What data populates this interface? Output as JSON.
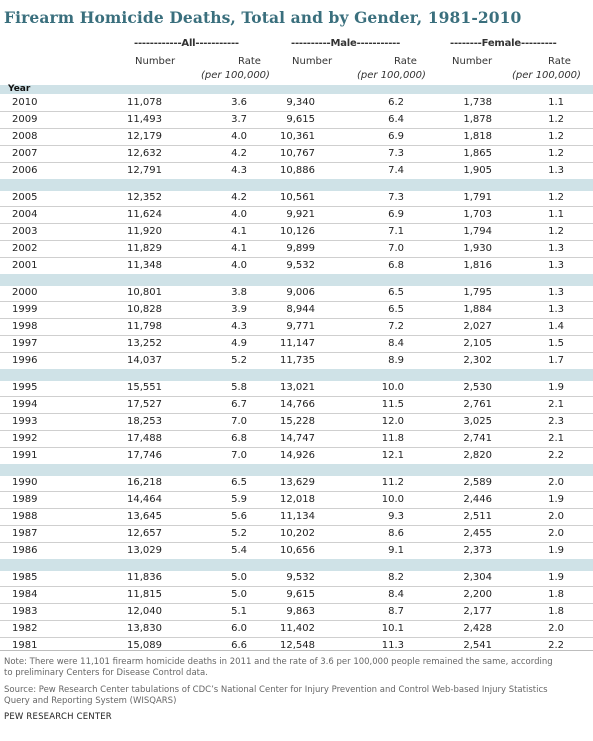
{
  "title": "Firearm Homicide Deaths, Total and by Gender, 1981-2010",
  "groups": {
    "all": "------------All-----------",
    "male": "----------Male-----------",
    "female": "--------Female---------"
  },
  "col_number": "Number",
  "col_rate_1": "Rate",
  "col_rate_2": "(per 100,000)",
  "year_label": "Year",
  "rows": [
    [
      "2010",
      "11,078",
      "3.6",
      "9,340",
      "6.2",
      "1,738",
      "1.1"
    ],
    [
      "2009",
      "11,493",
      "3.7",
      "9,615",
      "6.4",
      "1,878",
      "1.2"
    ],
    [
      "2008",
      "12,179",
      "4.0",
      "10,361",
      "6.9",
      "1,818",
      "1.2"
    ],
    [
      "2007",
      "12,632",
      "4.2",
      "10,767",
      "7.3",
      "1,865",
      "1.2"
    ],
    [
      "2006",
      "12,791",
      "4.3",
      "10,886",
      "7.4",
      "1,905",
      "1.3"
    ],
    [
      "2005",
      "12,352",
      "4.2",
      "10,561",
      "7.3",
      "1,791",
      "1.2"
    ],
    [
      "2004",
      "11,624",
      "4.0",
      "9,921",
      "6.9",
      "1,703",
      "1.1"
    ],
    [
      "2003",
      "11,920",
      "4.1",
      "10,126",
      "7.1",
      "1,794",
      "1.2"
    ],
    [
      "2002",
      "11,829",
      "4.1",
      "9,899",
      "7.0",
      "1,930",
      "1.3"
    ],
    [
      "2001",
      "11,348",
      "4.0",
      "9,532",
      "6.8",
      "1,816",
      "1.3"
    ],
    [
      "2000",
      "10,801",
      "3.8",
      "9,006",
      "6.5",
      "1,795",
      "1.3"
    ],
    [
      "1999",
      "10,828",
      "3.9",
      "8,944",
      "6.5",
      "1,884",
      "1.3"
    ],
    [
      "1998",
      "11,798",
      "4.3",
      "9,771",
      "7.2",
      "2,027",
      "1.4"
    ],
    [
      "1997",
      "13,252",
      "4.9",
      "11,147",
      "8.4",
      "2,105",
      "1.5"
    ],
    [
      "1996",
      "14,037",
      "5.2",
      "11,735",
      "8.9",
      "2,302",
      "1.7"
    ],
    [
      "1995",
      "15,551",
      "5.8",
      "13,021",
      "10.0",
      "2,530",
      "1.9"
    ],
    [
      "1994",
      "17,527",
      "6.7",
      "14,766",
      "11.5",
      "2,761",
      "2.1"
    ],
    [
      "1993",
      "18,253",
      "7.0",
      "15,228",
      "12.0",
      "3,025",
      "2.3"
    ],
    [
      "1992",
      "17,488",
      "6.8",
      "14,747",
      "11.8",
      "2,741",
      "2.1"
    ],
    [
      "1991",
      "17,746",
      "7.0",
      "14,926",
      "12.1",
      "2,820",
      "2.2"
    ],
    [
      "1990",
      "16,218",
      "6.5",
      "13,629",
      "11.2",
      "2,589",
      "2.0"
    ],
    [
      "1989",
      "14,464",
      "5.9",
      "12,018",
      "10.0",
      "2,446",
      "1.9"
    ],
    [
      "1988",
      "13,645",
      "5.6",
      "11,134",
      "9.3",
      "2,511",
      "2.0"
    ],
    [
      "1987",
      "12,657",
      "5.2",
      "10,202",
      "8.6",
      "2,455",
      "2.0"
    ],
    [
      "1986",
      "13,029",
      "5.4",
      "10,656",
      "9.1",
      "2,373",
      "1.9"
    ],
    [
      "1985",
      "11,836",
      "5.0",
      "9,532",
      "8.2",
      "2,304",
      "1.9"
    ],
    [
      "1984",
      "11,815",
      "5.0",
      "9,615",
      "8.4",
      "2,200",
      "1.8"
    ],
    [
      "1983",
      "12,040",
      "5.1",
      "9,863",
      "8.7",
      "2,177",
      "1.8"
    ],
    [
      "1982",
      "13,830",
      "6.0",
      "11,402",
      "10.1",
      "2,428",
      "2.0"
    ],
    [
      "1981",
      "15,089",
      "6.6",
      "12,548",
      "11.3",
      "2,541",
      "2.2"
    ]
  ],
  "note_line1": "Note: There were 11,101 firearm homicide deaths in 2011 and the rate of 3.6 per 100,000 people remained the same, according",
  "note_line2": "to preliminary Centers for Disease Control data.",
  "source_line1": "Source: Pew Research Center tabulations of CDC’s National Center for Injury Prevention and Control Web-based Injury Statistics",
  "source_line2": "Query and Reporting System (WISQARS)",
  "credit": "PEW RESEARCH CENTER",
  "colors": {
    "title": "#3a6f7d",
    "band": "#cfe2e7"
  }
}
